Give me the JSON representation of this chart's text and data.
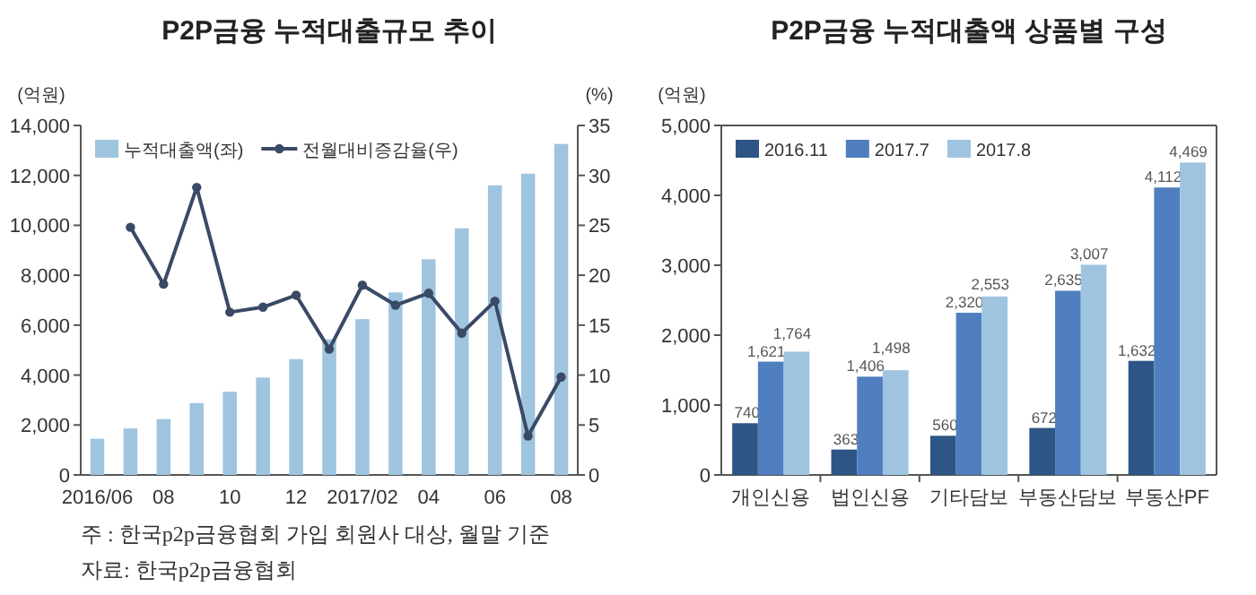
{
  "chart_data": [
    {
      "type": "bar",
      "title": "P2P금융 누적대출규모 추이",
      "ylabel": "(억원)",
      "y2label": "(%)",
      "categories": [
        "2016/06",
        null,
        "08",
        null,
        "10",
        null,
        "12",
        null,
        "2017/02",
        null,
        "04",
        null,
        "06",
        null,
        "08"
      ],
      "series": [
        {
          "name": "누적대출액(좌)",
          "type": "bar",
          "color": "#9fc4df",
          "values": [
            1450,
            1860,
            2240,
            2880,
            3330,
            3900,
            4640,
            5430,
            6240,
            7310,
            8640,
            9880,
            11600,
            12070,
            13260
          ]
        },
        {
          "name": "전월대비증감율(우)",
          "type": "line",
          "axis": "y2",
          "color": "#3a4a66",
          "values": [
            null,
            24.8,
            19.1,
            28.8,
            16.3,
            16.8,
            18.0,
            12.6,
            19.0,
            17.0,
            18.2,
            14.2,
            17.4,
            3.9,
            9.8
          ]
        }
      ],
      "ylim": [
        0,
        14000
      ],
      "yticks": [
        0,
        {
          "value": 2000,
          "label": "2,000"
        },
        {
          "value": 4000,
          "label": "4,000"
        },
        {
          "value": 6000,
          "label": "6,000"
        },
        {
          "value": 8000,
          "label": "8,000"
        },
        {
          "value": 10000,
          "label": "10,000"
        },
        {
          "value": 12000,
          "label": "12,000"
        },
        {
          "value": 14000,
          "label": "14,000"
        }
      ],
      "y2lim": [
        0,
        35
      ],
      "y2ticks": [
        0,
        5,
        10,
        15,
        20,
        25,
        30,
        35
      ],
      "marker": "circle",
      "legend": "top left",
      "annotations": [
        "주 : 한국p2p금융협회 가입 회원사 대상, 월말 기준",
        "자료: 한국p2p금융협회"
      ]
    },
    {
      "type": "bar",
      "title": "P2P금융 누적대출액 상품별 구성",
      "ylabel": "(억원)",
      "categories": [
        "개인신용",
        "법인신용",
        "기타담보",
        "부동산담보",
        "부동산PF"
      ],
      "series": [
        {
          "name": "2016.11",
          "color": "#2d5585",
          "values": [
            740,
            363,
            560,
            672,
            1632
          ],
          "value_labels": [
            "740",
            "363",
            "560",
            "672",
            "1,632"
          ]
        },
        {
          "name": "2017.7",
          "color": "#4f7fbf",
          "values": [
            1621,
            1406,
            2320,
            2635,
            4112
          ],
          "value_labels": [
            "1,621",
            "1,406",
            "2,320",
            "2,635",
            "4,112"
          ]
        },
        {
          "name": "2017.8",
          "color": "#9fc4df",
          "values": [
            1764,
            1498,
            2553,
            3007,
            4469
          ],
          "value_labels": [
            "1,764",
            "1,498",
            "2,553",
            "3,007",
            "4,469"
          ]
        }
      ],
      "ylim": [
        0,
        5000
      ],
      "yticks": [
        0,
        {
          "value": 1000,
          "label": "1,000"
        },
        {
          "value": 2000,
          "label": "2,000"
        },
        {
          "value": 3000,
          "label": "3,000"
        },
        {
          "value": 4000,
          "label": "4,000"
        },
        {
          "value": 5000,
          "label": "5,000"
        }
      ],
      "legend": "top left"
    }
  ]
}
